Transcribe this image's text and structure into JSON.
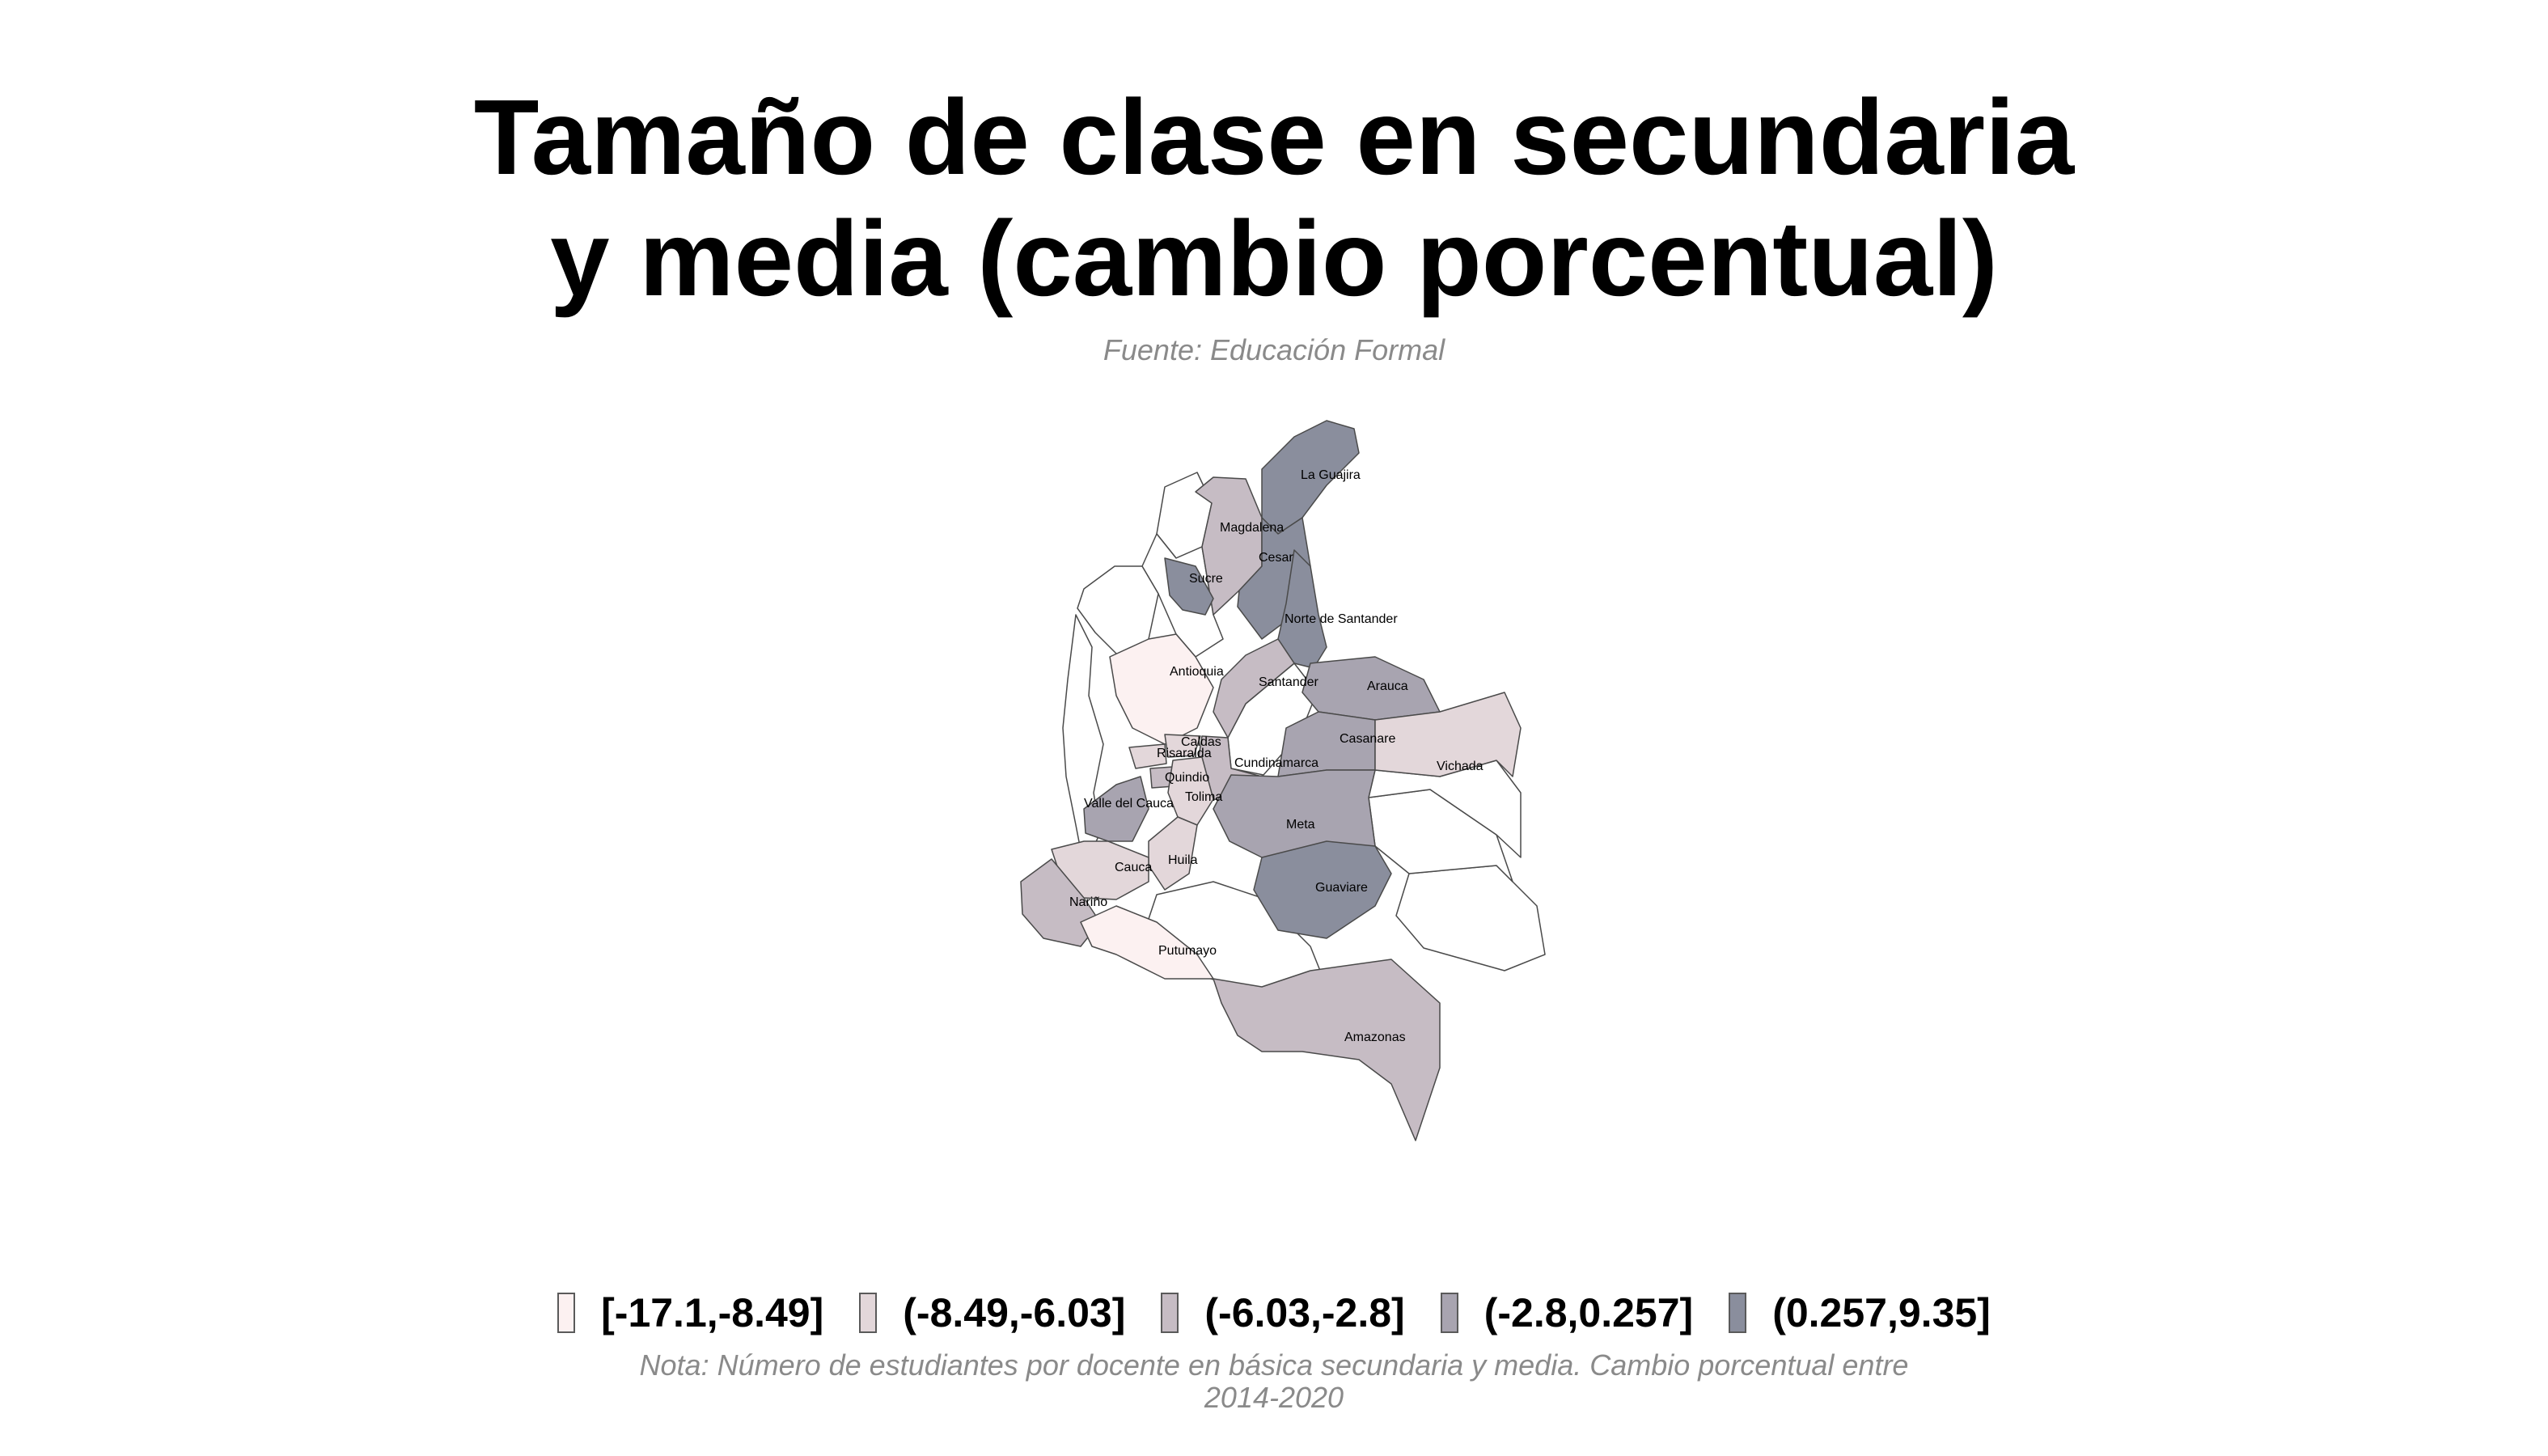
{
  "title": {
    "line1": "Tamaño de clase en secundaria",
    "line2": "y media (cambio porcentual)"
  },
  "subtitle": "Fuente: Educación Formal",
  "colors": {
    "bin1": "#fcf1f1",
    "bin2": "#e3d7da",
    "bin3": "#c6bcc4",
    "bin4": "#a8a4b0",
    "bin5": "#8a8e9d",
    "no_data": "#ffffff",
    "border": "#4a4a4a"
  },
  "legend": [
    {
      "label": "[-17.1,-8.49]",
      "bin": "bin1"
    },
    {
      "label": "(-8.49,-6.03]",
      "bin": "bin2"
    },
    {
      "label": "(-6.03,-2.8]",
      "bin": "bin3"
    },
    {
      "label": "(-2.8,0.257]",
      "bin": "bin4"
    },
    {
      "label": "(0.257,9.35]",
      "bin": "bin5"
    }
  ],
  "departments": [
    {
      "name": "La Guajira",
      "bin": "bin5"
    },
    {
      "name": "Magdalena",
      "bin": "bin3"
    },
    {
      "name": "Cesar",
      "bin": "bin5"
    },
    {
      "name": "Sucre",
      "bin": "bin5"
    },
    {
      "name": "Norte de Santander",
      "bin": "bin5"
    },
    {
      "name": "Antioquia",
      "bin": "bin1"
    },
    {
      "name": "Santander",
      "bin": "bin3"
    },
    {
      "name": "Arauca",
      "bin": "bin4"
    },
    {
      "name": "Caldas",
      "bin": "bin2"
    },
    {
      "name": "Risaralda",
      "bin": "bin2"
    },
    {
      "name": "Cundinamarca",
      "bin": "bin3"
    },
    {
      "name": "Casanare",
      "bin": "bin4"
    },
    {
      "name": "Vichada",
      "bin": "bin2"
    },
    {
      "name": "Quindio",
      "bin": "bin3"
    },
    {
      "name": "Tolima",
      "bin": "bin2"
    },
    {
      "name": "Valle del Cauca",
      "bin": "bin4"
    },
    {
      "name": "Meta",
      "bin": "bin4"
    },
    {
      "name": "Huila",
      "bin": "bin2"
    },
    {
      "name": "Cauca",
      "bin": "bin2"
    },
    {
      "name": "Guaviare",
      "bin": "bin5"
    },
    {
      "name": "Nariño",
      "bin": "bin3"
    },
    {
      "name": "Putumayo",
      "bin": "bin1"
    },
    {
      "name": "Amazonas",
      "bin": "bin3"
    }
  ],
  "note": {
    "line1": "Nota: Número de estudiantes por docente en básica secundaria y media. Cambio porcentual entre",
    "line2": "2014-2020"
  }
}
